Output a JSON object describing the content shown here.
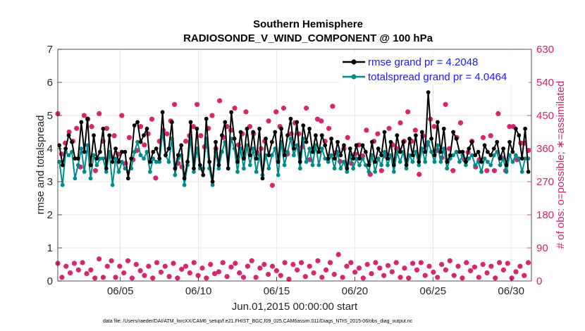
{
  "chart_data": {
    "type": "line",
    "title": "Southern Hemisphere",
    "subtitle": "RADIOSONDE_V_WIND_COMPONENT @ 100 hPa",
    "xlabel": "Jun.01,2015 00:00:00 start",
    "ylabel": "rmse and totalspread",
    "ylabel_right": "# of obs: o=possible; ∗=assimilated",
    "footnote": "data file: /Users/raeder/DAI/ATM_forcXX/CAM6_setup/f.e21.FHIST_BGC.f09_025.CAM6assim.011/Diags_NTrS_2015-06/obs_diag_output.nc",
    "xlim": [
      1,
      31.3
    ],
    "ylim": [
      0,
      7
    ],
    "ylim_right": [
      0,
      630
    ],
    "x_ticks": [
      5,
      10,
      15,
      20,
      25,
      30
    ],
    "x_tick_labels": [
      "06/05",
      "06/10",
      "06/15",
      "06/20",
      "06/25",
      "06/30"
    ],
    "y_ticks": [
      0,
      1,
      2,
      3,
      4,
      5,
      6,
      7
    ],
    "y_ticks_right": [
      0,
      90,
      180,
      270,
      360,
      450,
      540,
      630
    ],
    "legend_position": "top-right",
    "colors": {
      "rmse": "#000000",
      "spread": "#008b8b",
      "obs": "#d6226b",
      "legend_text": "#1a1aff"
    },
    "series": [
      {
        "name": "rmse grand pr = 4.2048",
        "key": "rmse",
        "values": [
          4.1,
          3.5,
          4.0,
          4.4,
          4.2,
          3.7,
          3.7,
          4.8,
          3.9,
          4.9,
          3.5,
          4.4,
          3.7,
          3.9,
          4.6,
          3.4,
          4.4,
          3.6,
          4.0,
          3.6,
          3.9,
          3.9,
          3.1,
          3.7,
          4.7,
          4.8,
          4.2,
          4.4,
          4.6,
          3.6,
          3.9,
          4.0,
          3.7,
          5.1,
          3.8,
          4.0,
          4.8,
          3.4,
          3.8,
          4.1,
          3.1,
          3.6,
          4.8,
          3.4,
          4.6,
          3.5,
          3.2,
          4.9,
          3.6,
          3.0,
          4.2,
          3.5,
          4.4,
          4.8,
          3.4,
          5.1,
          4.3,
          3.6,
          4.5,
          3.7,
          4.6,
          3.8,
          4.5,
          3.7,
          4.6,
          3.1,
          4.3,
          3.8,
          4.2,
          4.5,
          3.6,
          4.6,
          3.8,
          4.4,
          4.9,
          4.0,
          4.8,
          3.6,
          4.7,
          4.2,
          4.6,
          3.9,
          4.4,
          3.9,
          4.4,
          4.1,
          3.7,
          4.3,
          3.7,
          4.2,
          3.8,
          4.1,
          3.4,
          4.0,
          3.7,
          4.1,
          3.7,
          4.1,
          3.9,
          3.5,
          4.2,
          3.6,
          4.0,
          3.8,
          4.5,
          3.7,
          4.2,
          3.5,
          4.4,
          3.9,
          4.2,
          3.5,
          4.3,
          3.8,
          4.4,
          3.6,
          4.5,
          3.9,
          5.7,
          4.3,
          3.8,
          4.8,
          3.9,
          4.6,
          3.6,
          3.8,
          4.5,
          4.3,
          3.9,
          3.9,
          3.6,
          4.0,
          4.2,
          3.8,
          3.9,
          3.6,
          4.1,
          3.9,
          3.8,
          4.0,
          4.2,
          3.7,
          4.0,
          3.5,
          4.2,
          3.9,
          4.6,
          4.4,
          3.7,
          4.6,
          3.3
        ]
      },
      {
        "name": "totalspread grand pr = 4.0464",
        "key": "spread",
        "values": [
          3.6,
          2.9,
          3.9,
          3.8,
          3.9,
          3.1,
          3.5,
          4.0,
          3.3,
          4.1,
          3.1,
          3.8,
          3.5,
          3.7,
          3.7,
          3.3,
          3.9,
          2.9,
          3.7,
          3.3,
          3.6,
          3.4,
          3.3,
          3.4,
          3.9,
          4.2,
          3.8,
          3.7,
          3.9,
          3.3,
          3.7,
          3.6,
          3.6,
          4.5,
          3.8,
          3.6,
          4.3,
          3.2,
          3.7,
          3.8,
          2.9,
          3.5,
          4.3,
          3.3,
          4.0,
          3.4,
          3.4,
          4.3,
          3.4,
          2.9,
          3.9,
          3.4,
          3.9,
          4.2,
          3.4,
          4.3,
          4.0,
          3.3,
          4.0,
          3.4,
          4.1,
          3.5,
          4.0,
          3.3,
          3.8,
          3.2,
          3.8,
          3.4,
          3.8,
          4.0,
          3.2,
          4.2,
          3.5,
          3.9,
          4.3,
          3.8,
          4.1,
          3.4,
          4.3,
          3.6,
          4.0,
          3.5,
          4.1,
          3.5,
          4.0,
          3.7,
          3.6,
          3.8,
          3.4,
          3.9,
          3.4,
          3.6,
          3.3,
          3.8,
          3.4,
          3.7,
          3.5,
          3.7,
          3.5,
          3.3,
          3.8,
          3.3,
          3.7,
          3.5,
          3.9,
          3.5,
          3.8,
          3.3,
          3.9,
          3.6,
          3.9,
          3.4,
          3.8,
          3.6,
          3.9,
          3.5,
          4.0,
          3.6,
          4.2,
          3.9,
          3.6,
          4.1,
          3.6,
          4.0,
          3.4,
          3.7,
          3.8,
          3.9,
          3.6,
          3.8,
          3.5,
          3.7,
          3.8,
          3.5,
          3.6,
          3.3,
          3.7,
          3.6,
          3.5,
          3.8,
          3.9,
          3.5,
          3.7,
          3.3,
          3.8,
          3.6,
          3.8,
          3.7,
          3.3,
          3.7,
          3.7
        ]
      }
    ],
    "obs_high": [
      455,
      345,
      375,
      405,
      380,
      415,
      310,
      450,
      440,
      420,
      300,
      455,
      380,
      415,
      340,
      395,
      345,
      450,
      320,
      390,
      330,
      355,
      420,
      370,
      400,
      440,
      280,
      380,
      410,
      400,
      435,
      480,
      320,
      310,
      380,
      395,
      420,
      480,
      395,
      365,
      415,
      450,
      360,
      490,
      390,
      420,
      410,
      470,
      370,
      400,
      460,
      420,
      400,
      350,
      360,
      380,
      435,
      260,
      460,
      420,
      470,
      345,
      400,
      430,
      400,
      365,
      470,
      330,
      360,
      440,
      435,
      380,
      415,
      475,
      350,
      325,
      360,
      390,
      320,
      345,
      370,
      340,
      410,
      290,
      380,
      400,
      300,
      340,
      415,
      370,
      360,
      430,
      380,
      460,
      380,
      410,
      290,
      395,
      370,
      440,
      420,
      355,
      335,
      480,
      360,
      300,
      390,
      430,
      330,
      350,
      380,
      310,
      330,
      390,
      300,
      395,
      300,
      455,
      335,
      300,
      420,
      420,
      330,
      375,
      375,
      355
    ],
    "obs_low": [
      48,
      10,
      40,
      22,
      48,
      30,
      50,
      20,
      30,
      8,
      60,
      10,
      40,
      55,
      10,
      40,
      22,
      55,
      8,
      45,
      28,
      15,
      40,
      8,
      50,
      24,
      40,
      12,
      48,
      8,
      32,
      40,
      22,
      50,
      15,
      35,
      8,
      45,
      20,
      25,
      50,
      12,
      38,
      48,
      22,
      10,
      40,
      55,
      10,
      35,
      45,
      18,
      40,
      28,
      15,
      50,
      5,
      45,
      30,
      50,
      12,
      40,
      22,
      55,
      10,
      30,
      50,
      18,
      72,
      10,
      40,
      50,
      24,
      35,
      8,
      45,
      20,
      50,
      35,
      15,
      42,
      25,
      50,
      10,
      35,
      8,
      48,
      30,
      50,
      15,
      40,
      24,
      10,
      45,
      30,
      55,
      15,
      40,
      8,
      50,
      28,
      38,
      10,
      45,
      22,
      40,
      8,
      50,
      30,
      48,
      8,
      25,
      40,
      15,
      50
    ]
  }
}
